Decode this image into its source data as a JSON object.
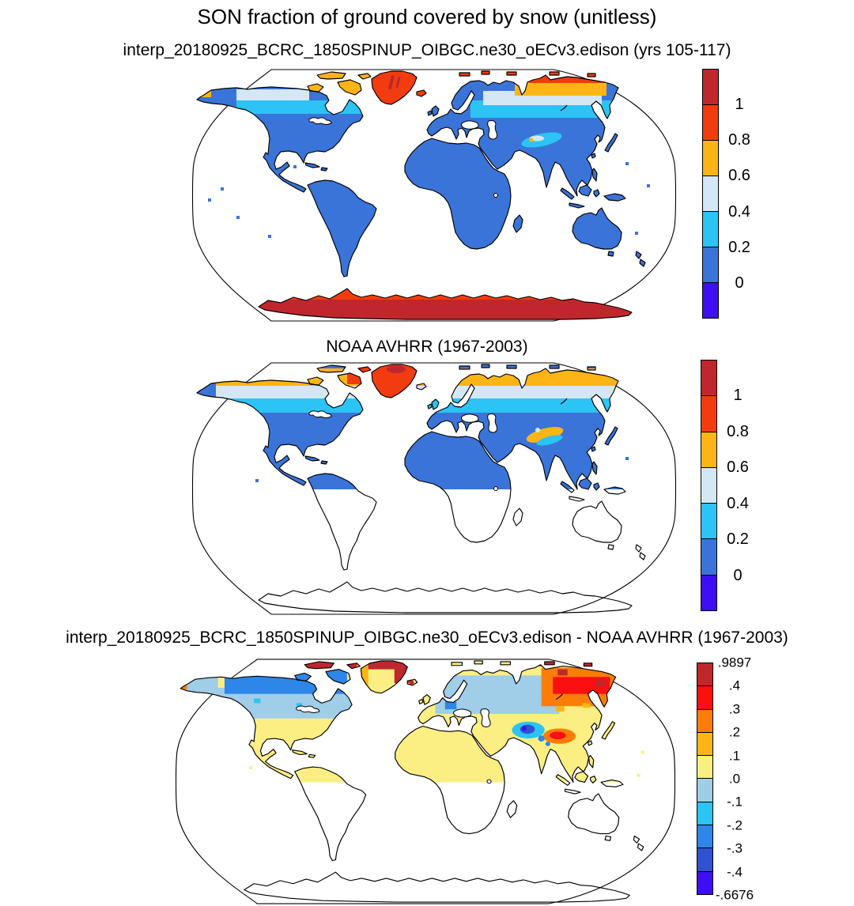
{
  "figure_title": "SON fraction of ground covered by snow (unitless)",
  "panels": [
    {
      "id": "model",
      "title": "interp_20180925_BCRC_1850SPINUP_OIBGC.ne30_oECv3.edison (yrs 105-117)",
      "colorbar": {
        "labels": [
          "1",
          "0.8",
          "0.6",
          "0.4",
          "0.2",
          "0"
        ],
        "colors": [
          "#c0272d",
          "#f23c10",
          "#fcb515",
          "#d4e7f4",
          "#2bc4f4",
          "#3b74d8",
          "#3d0ff2"
        ]
      }
    },
    {
      "id": "obs",
      "title": "NOAA AVHRR (1967-2003)",
      "colorbar": {
        "labels": [
          "1",
          "0.8",
          "0.6",
          "0.4",
          "0.2",
          "0"
        ],
        "colors": [
          "#c0272d",
          "#f23c10",
          "#fcb515",
          "#d4e7f4",
          "#2bc4f4",
          "#3b74d8",
          "#3d0ff2"
        ]
      }
    },
    {
      "id": "diff",
      "title": "interp_20180925_BCRC_1850SPINUP_OIBGC.ne30_oECv3.edison - NOAA AVHRR (1967-2003)",
      "colorbar": {
        "labels": [
          ".9897",
          ".4",
          ".3",
          ".2",
          ".1",
          ".0",
          "-.1",
          "-.2",
          "-.3",
          "-.4",
          "-.6676"
        ],
        "colors": [
          "#c0272d",
          "#fb0f0f",
          "#fb7d07",
          "#fcb515",
          "#fbee83",
          "#a0cde8",
          "#2bc4f4",
          "#2e86e8",
          "#3052d0",
          "#3d0ff2"
        ]
      }
    }
  ],
  "palette": {
    "darkred": "#c0272d",
    "redorange": "#f23c10",
    "red": "#fb0f0f",
    "orange": "#fb7d07",
    "amber": "#fcb515",
    "paleyellow": "#fbee83",
    "paleblue": "#d4e7f4",
    "lightblue": "#a0cde8",
    "cyan": "#2bc4f4",
    "blue": "#3b74d8",
    "medblue": "#2e86e8",
    "deepblue": "#3052d0",
    "violet": "#3d0ff2"
  },
  "chart_data": [
    {
      "type": "heatmap",
      "title": "interp_20180925_BCRC_1850SPINUP_OIBGC.ne30_oECv3.edison (yrs 105-117)",
      "variable": "SON fraction of ground covered by snow",
      "units": "unitless",
      "projection": "Robinson world map, land only, ocean white",
      "levels": [
        0,
        0.2,
        0.4,
        0.6,
        0.8,
        1
      ],
      "palette_low_to_high": [
        "#3d0ff2",
        "#3b74d8",
        "#2bc4f4",
        "#d4e7f4",
        "#fcb515",
        "#f23c10",
        "#c0272d"
      ],
      "region_values": {
        "antarctica": "> 1 (dark red) with 0.8-1 coastal fringe",
        "greenland": "0.8-1",
        "canadian_arctic_islands": "0.6-0.8",
        "northern_canada_alaska_55_70N": "0.2-0.6 bands",
        "siberian_arctic_coast": "0.8-1 patches",
        "siberia_60_72N": "0.4-0.8 bands",
        "tibet_tien_shan": "0.2-0.6 patches",
        "midlatitude_and_tropical_land": "0-0.2",
        "ocean": "no data (white)"
      }
    },
    {
      "type": "heatmap",
      "title": "NOAA AVHRR (1967-2003)",
      "variable": "SON fraction of ground covered by snow",
      "units": "unitless",
      "projection": "Robinson world map, Northern-Hemisphere land only",
      "levels": [
        0,
        0.2,
        0.4,
        0.6,
        0.8,
        1
      ],
      "palette_low_to_high": [
        "#3d0ff2",
        "#3b74d8",
        "#2bc4f4",
        "#d4e7f4",
        "#fcb515",
        "#f23c10",
        "#c0272d"
      ],
      "region_values": {
        "greenland": "0.8 to > 1",
        "baffin_area": "0.8-1 patches",
        "arctic_coast_band": "0.6-0.8 (amber) across Alaska, arctic Canada, northern Eurasia",
        "subarctic_band": "0.4-0.6 then 0.2-0.4 moving south",
        "midlatitude_land_to_equator": "0-0.2",
        "tibet": "0.2-0.8 arc",
        "south_of_equator_and_antarctica": "no data (white)"
      }
    },
    {
      "type": "heatmap",
      "title": "interp_20180925_BCRC_1850SPINUP_OIBGC.ne30_oECv3.edison - NOAA AVHRR (1967-2003)",
      "variable": "difference in SON snow cover fraction (model minus obs)",
      "units": "unitless",
      "min": -0.6676,
      "max": 0.9897,
      "levels": [
        -0.6676,
        -0.4,
        -0.3,
        -0.2,
        -0.1,
        0,
        0.1,
        0.2,
        0.3,
        0.4,
        0.9897
      ],
      "palette_low_to_high": [
        "#3d0ff2",
        "#3052d0",
        "#2e86e8",
        "#2bc4f4",
        "#a0cde8",
        "#fbee83",
        "#fcb515",
        "#fb7d07",
        "#fb0f0f",
        "#c0272d"
      ],
      "region_values": {
        "tropics_and_midlatitudes_to_45N": "0 to 0.1 (pale yellow)",
        "canada_scandinavia_west_russia": "-0.1 to 0 (light blue)",
        "central_canada_alaska": "-0.3 to -0.1 (blue)",
        "central_asia_spot": "-0.4 to -0.6676 (deep blue/violet)",
        "east_siberia": "0.2 to 0.4 (orange/red)",
        "arctic_islands_north_greenland": "0.4 to 0.9897 (dark red)",
        "tibet": "mixed -0.3 to +0.4",
        "southern_hemisphere": "no data (white)"
      }
    }
  ]
}
